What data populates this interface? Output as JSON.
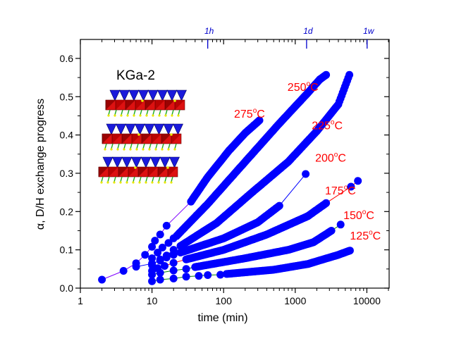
{
  "chart_data": {
    "type": "scatter",
    "title": "",
    "inset_title": "KGa-2",
    "xlabel": "time (min)",
    "ylabel": "α, D/H exchange progress",
    "xscale": "log",
    "xlim": [
      1,
      20000
    ],
    "ylim": [
      0,
      0.64
    ],
    "x_ticks": [
      1,
      10,
      100,
      1000,
      10000
    ],
    "x_tick_labels": [
      "1",
      "10",
      "100",
      "1000",
      "10000"
    ],
    "y_ticks": [
      0.0,
      0.1,
      0.2,
      0.3,
      0.4,
      0.5,
      0.6
    ],
    "y_tick_labels": [
      "0.0",
      "0.1",
      "0.2",
      "0.3",
      "0.4",
      "0.5",
      "0.6"
    ],
    "top_axis": {
      "ticks": [
        60,
        1440,
        10080
      ],
      "labels": [
        "1h",
        "1d",
        "1w"
      ],
      "color": "#0000cc"
    },
    "marker_color": "#0000ff",
    "label_color": "#ff0000",
    "grid": false,
    "series": [
      {
        "name": "275°C",
        "line_color": "#7f00ff",
        "sparse": [
          [
            2,
            0.022
          ],
          [
            4,
            0.045
          ],
          [
            6,
            0.065
          ],
          [
            8,
            0.087
          ],
          [
            10,
            0.108
          ],
          [
            11,
            0.124
          ],
          [
            13,
            0.14
          ],
          [
            16,
            0.163
          ]
        ],
        "dense": [
          [
            35,
            0.226
          ],
          [
            60,
            0.29
          ],
          [
            120,
            0.36
          ],
          [
            200,
            0.405
          ],
          [
            316,
            0.438
          ]
        ]
      },
      {
        "name": "250°C",
        "line_color": "#0000ff",
        "sparse": [
          [
            10,
            0.078
          ],
          [
            12,
            0.093
          ],
          [
            14,
            0.106
          ],
          [
            17,
            0.118
          ],
          [
            20,
            0.13
          ]
        ],
        "dense": [
          [
            22,
            0.136
          ],
          [
            60,
            0.22
          ],
          [
            200,
            0.33
          ],
          [
            600,
            0.43
          ],
          [
            1500,
            0.51
          ],
          [
            2200,
            0.545
          ],
          [
            2700,
            0.557
          ]
        ]
      },
      {
        "name": "225°C",
        "line_color": "#0000ff",
        "sparse": [
          [
            10,
            0.06
          ],
          [
            13,
            0.075
          ],
          [
            16,
            0.085
          ],
          [
            20,
            0.1
          ]
        ],
        "dense": [
          [
            25,
            0.11
          ],
          [
            80,
            0.17
          ],
          [
            250,
            0.25
          ],
          [
            800,
            0.33
          ],
          [
            2000,
            0.41
          ],
          [
            4000,
            0.48
          ],
          [
            5700,
            0.557
          ]
        ]
      },
      {
        "name": "200°C",
        "line_color": "#0000ff",
        "sparse": [
          [
            6,
            0.056
          ],
          [
            10,
            0.064
          ],
          [
            13,
            0.072
          ],
          [
            16,
            0.08
          ],
          [
            20,
            0.087
          ]
        ],
        "dense": [
          [
            25,
            0.093
          ],
          [
            100,
            0.13
          ],
          [
            300,
            0.172
          ],
          [
            600,
            0.215
          ]
        ],
        "tail": [
          [
            1400,
            0.298
          ]
        ]
      },
      {
        "name": "175°C",
        "line_color": "#ff0000",
        "sparse": [
          [
            10,
            0.045
          ],
          [
            12,
            0.052
          ],
          [
            15,
            0.058
          ],
          [
            20,
            0.066
          ]
        ],
        "dense": [
          [
            30,
            0.075
          ],
          [
            100,
            0.1
          ],
          [
            400,
            0.14
          ],
          [
            1500,
            0.188
          ],
          [
            2700,
            0.222
          ]
        ],
        "tail": [
          [
            6000,
            0.265
          ],
          [
            7500,
            0.28
          ]
        ]
      },
      {
        "name": "150°C",
        "line_color": "#008000",
        "sparse": [
          [
            10,
            0.035
          ],
          [
            13,
            0.04
          ],
          [
            20,
            0.046
          ],
          [
            30,
            0.05
          ]
        ],
        "dense": [
          [
            40,
            0.055
          ],
          [
            200,
            0.078
          ],
          [
            800,
            0.1
          ],
          [
            1800,
            0.12
          ],
          [
            3200,
            0.15
          ]
        ],
        "tail": [
          [
            4300,
            0.166
          ]
        ]
      },
      {
        "name": "125°C",
        "line_color": "#008000",
        "sparse": [
          [
            10,
            0.018
          ],
          [
            13,
            0.022
          ],
          [
            20,
            0.025
          ],
          [
            30,
            0.03
          ],
          [
            45,
            0.032
          ],
          [
            60,
            0.034
          ],
          [
            90,
            0.035
          ]
        ],
        "dense": [
          [
            110,
            0.037
          ],
          [
            500,
            0.048
          ],
          [
            1500,
            0.063
          ],
          [
            4000,
            0.087
          ],
          [
            5800,
            0.098
          ]
        ]
      }
    ],
    "annotations": [
      {
        "text": "275",
        "unit": "C",
        "x": 140,
        "y": 0.445
      },
      {
        "text": "250",
        "unit": "C",
        "x": 780,
        "y": 0.515
      },
      {
        "text": "225",
        "unit": "C",
        "x": 1700,
        "y": 0.415
      },
      {
        "text": "200",
        "unit": "C",
        "x": 1900,
        "y": 0.33
      },
      {
        "text": "175",
        "unit": "C",
        "x": 2600,
        "y": 0.245
      },
      {
        "text": "150",
        "unit": "C",
        "x": 4700,
        "y": 0.18
      },
      {
        "text": "125",
        "unit": "C",
        "x": 5800,
        "y": 0.127
      }
    ]
  }
}
